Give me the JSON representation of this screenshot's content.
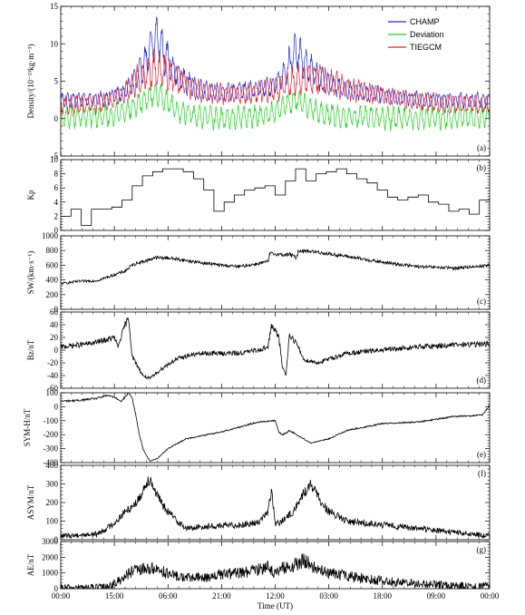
{
  "chart_data": {
    "type": "line",
    "xlabel": "Time (UT)",
    "x_ticks": [
      "00:00",
      "15:00",
      "06:00",
      "21:00",
      "12:00",
      "03:00",
      "18:00",
      "09:00",
      "00:00"
    ],
    "x_range_hours": [
      0,
      120
    ],
    "legend": [
      "CHAMP",
      "Deviation",
      "TIEGCM"
    ],
    "colors": {
      "CHAMP": "#1f2fd6",
      "Deviation": "#1fd21f",
      "TIEGCM": "#e0202a",
      "line": "#000000"
    },
    "panels": [
      {
        "tag": "(a)",
        "ylabel": "Density/(10⁻¹³kg·m⁻³)",
        "ylim": [
          -5,
          15
        ],
        "yticks": [
          -5,
          0,
          5,
          10,
          15
        ],
        "ytick_labels": [
          "-5",
          "0",
          "5",
          "10",
          "15"
        ],
        "series": [
          {
            "name": "CHAMP",
            "x": [
              0,
              12,
              18,
              22,
              25,
              27,
              29,
              33,
              38,
              45,
              55,
              60,
              63,
              66,
              68,
              72,
              78,
              85,
              95,
              105,
              112,
              120
            ],
            "y": [
              2.5,
              2.6,
              3.5,
              6.0,
              9.0,
              11.0,
              8.5,
              5.5,
              4.0,
              3.5,
              3.8,
              4.5,
              6.5,
              9.0,
              7.5,
              5.5,
              4.0,
              3.5,
              2.8,
              2.5,
              2.4,
              2.5
            ],
            "amplitude": 0.8
          },
          {
            "name": "Deviation",
            "x": [
              0,
              12,
              18,
              22,
              25,
              27,
              29,
              33,
              38,
              45,
              55,
              60,
              63,
              66,
              68,
              72,
              78,
              85,
              95,
              105,
              112,
              120
            ],
            "y": [
              0.2,
              0.3,
              1.0,
              2.0,
              3.0,
              3.5,
              2.5,
              1.0,
              0.3,
              0.0,
              0.3,
              0.8,
              2.0,
              2.5,
              2.0,
              0.8,
              0.3,
              0.2,
              0.0,
              0.2,
              0.1,
              0.3
            ],
            "amplitude": 1.2
          },
          {
            "name": "TIEGCM",
            "x": [
              0,
              12,
              18,
              22,
              26,
              30,
              35,
              40,
              50,
              60,
              65,
              70,
              75,
              85,
              100,
              110,
              120
            ],
            "y": [
              1.8,
              2.0,
              3.5,
              5.5,
              6.5,
              6.0,
              4.5,
              3.5,
              3.2,
              3.8,
              5.0,
              5.5,
              4.8,
              3.5,
              2.3,
              1.9,
              1.8
            ],
            "amplitude": 1.0
          }
        ]
      },
      {
        "tag": "(b)",
        "ylabel": "Kp",
        "ylim": [
          0,
          10
        ],
        "yticks": [
          0,
          2,
          4,
          6,
          8,
          10
        ],
        "ytick_labels": [
          "0",
          "2",
          "4",
          "6",
          "8",
          "10"
        ],
        "step": true,
        "series": [
          {
            "name": "Kp",
            "values": [
              2.0,
              3.0,
              0.7,
              3.0,
              3.0,
              3.3,
              4.3,
              6.3,
              7.7,
              8.3,
              8.7,
              8.7,
              8.3,
              7.3,
              5.7,
              2.7,
              4.0,
              5.0,
              5.7,
              6.0,
              6.3,
              5.0,
              7.0,
              8.7,
              7.0,
              8.0,
              8.3,
              8.7,
              8.0,
              7.3,
              6.7,
              5.7,
              4.7,
              4.3,
              4.7,
              5.0,
              4.0,
              3.7,
              2.7,
              3.0,
              2.3,
              4.3
            ]
          }
        ]
      },
      {
        "tag": "(c)",
        "ylabel": "SW/(km·s⁻¹)",
        "ylim": [
          0,
          1000
        ],
        "yticks": [
          0,
          200,
          400,
          600,
          800,
          1000
        ],
        "ytick_labels": [
          "0",
          "200",
          "400",
          "600",
          "800",
          "1000"
        ],
        "series": [
          {
            "name": "SW",
            "x": [
              0,
              5,
              10,
              12,
              15,
              18,
              20,
              22,
              24,
              26,
              30,
              40,
              45,
              50,
              55,
              58,
              58.5,
              63,
              64,
              66,
              66.5,
              70,
              80,
              90,
              100,
              110,
              120
            ],
            "y": [
              350,
              380,
              390,
              420,
              470,
              520,
              600,
              640,
              660,
              700,
              700,
              630,
              600,
              580,
              620,
              650,
              760,
              740,
              750,
              700,
              800,
              790,
              720,
              640,
              580,
              560,
              600
            ],
            "amplitude": 20
          }
        ]
      },
      {
        "tag": "(d)",
        "ylabel": "Bz/nT",
        "ylim": [
          -60,
          60
        ],
        "yticks": [
          -60,
          -40,
          -20,
          0,
          20,
          40,
          60
        ],
        "ytick_labels": [
          "-60",
          "-40",
          "-20",
          "0",
          "20",
          "40",
          "60"
        ],
        "series": [
          {
            "name": "Bz",
            "x": [
              0,
              8,
              12,
              15,
              16,
              18,
              19,
              20,
              21,
              22,
              23,
              25,
              28,
              32,
              36,
              40,
              50,
              55,
              58,
              59,
              60,
              61,
              62,
              63,
              64,
              66,
              68,
              72,
              80,
              90,
              100,
              110,
              120
            ],
            "y": [
              5,
              10,
              15,
              20,
              5,
              40,
              50,
              -10,
              -20,
              -30,
              -40,
              -45,
              -30,
              -15,
              -8,
              -5,
              -5,
              0,
              5,
              40,
              30,
              20,
              -25,
              -40,
              25,
              10,
              -15,
              -20,
              -5,
              0,
              5,
              8,
              10
            ],
            "amplitude": 4
          }
        ]
      },
      {
        "tag": "(e)",
        "ylabel": "SYM-H/nT",
        "ylim": [
          -400,
          100
        ],
        "yticks": [
          -400,
          -300,
          -200,
          -100,
          0,
          100
        ],
        "ytick_labels": [
          "-400",
          "-300",
          "-200",
          "-100",
          "0",
          "100"
        ],
        "series": [
          {
            "name": "SYM-H",
            "x": [
              0,
              5,
              10,
              13,
              15,
              17,
              19,
              20,
              21,
              22,
              23,
              24,
              25,
              27,
              30,
              35,
              45,
              55,
              60,
              61,
              62,
              63,
              64,
              66,
              70,
              75,
              80,
              90,
              100,
              110,
              118,
              120
            ],
            "y": [
              40,
              45,
              60,
              80,
              70,
              40,
              100,
              60,
              -60,
              -200,
              -300,
              -350,
              -390,
              -370,
              -300,
              -230,
              -180,
              -110,
              -100,
              -180,
              -200,
              -190,
              -170,
              -200,
              -260,
              -230,
              -170,
              -120,
              -110,
              -70,
              -60,
              10
            ],
            "amplitude": 5
          }
        ]
      },
      {
        "tag": "(f)",
        "ylabel": "ASYM/nT",
        "ylim": [
          0,
          400
        ],
        "yticks": [
          0,
          100,
          200,
          300,
          400
        ],
        "ytick_labels": [
          "0",
          "100",
          "200",
          "300",
          "400"
        ],
        "series": [
          {
            "name": "ASYM",
            "x": [
              0,
              10,
              12,
              15,
              18,
              20,
              22,
              24,
              25,
              26,
              28,
              30,
              35,
              40,
              50,
              55,
              58,
              59,
              60,
              62,
              65,
              68,
              70,
              72,
              75,
              80,
              90,
              100,
              110,
              115,
              120
            ],
            "y": [
              20,
              30,
              50,
              90,
              150,
              180,
              220,
              310,
              330,
              280,
              200,
              150,
              60,
              70,
              80,
              90,
              150,
              270,
              80,
              100,
              150,
              250,
              300,
              230,
              150,
              100,
              80,
              60,
              40,
              30,
              20
            ],
            "amplitude": 25
          }
        ]
      },
      {
        "tag": "(g)",
        "ylabel": "AE/nT",
        "ylim": [
          0,
          3000
        ],
        "yticks": [
          0,
          1000,
          2000,
          3000
        ],
        "ytick_labels": [
          "0",
          "1000",
          "2000",
          "3000"
        ],
        "series": [
          {
            "name": "AE",
            "x": [
              0,
              10,
              12,
              15,
              18,
              20,
              25,
              28,
              30,
              35,
              40,
              45,
              50,
              55,
              58,
              60,
              62,
              65,
              68,
              70,
              72,
              75,
              80,
              90,
              100,
              110,
              120
            ],
            "y": [
              50,
              80,
              100,
              300,
              800,
              1100,
              1300,
              1200,
              900,
              700,
              700,
              900,
              1000,
              1200,
              1500,
              900,
              1300,
              1400,
              1800,
              1500,
              1200,
              1000,
              800,
              500,
              300,
              200,
              150
            ],
            "amplitude": 450
          }
        ]
      }
    ]
  }
}
